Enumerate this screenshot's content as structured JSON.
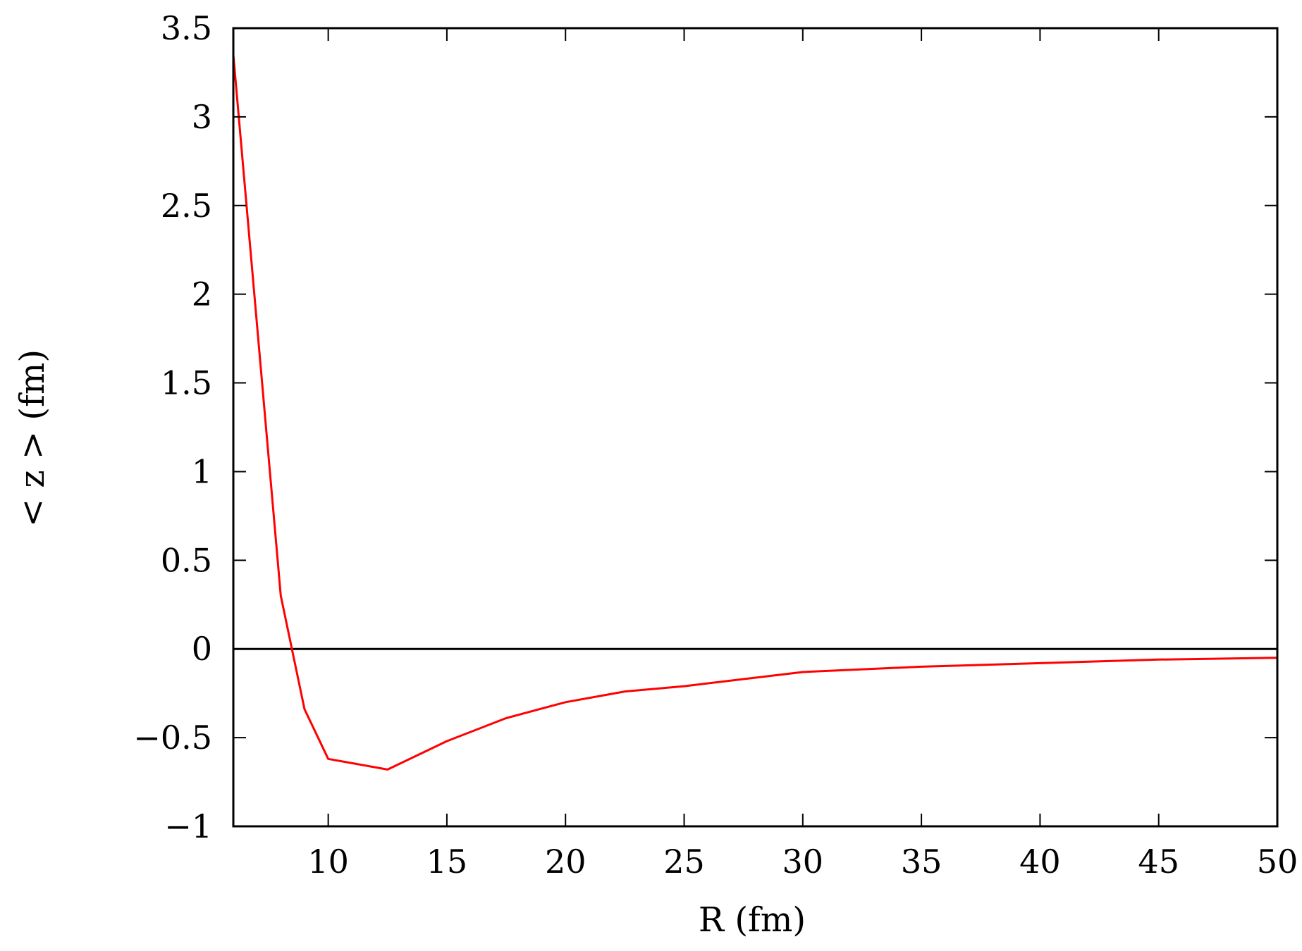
{
  "chart_data": {
    "type": "line",
    "xlabel": "R (fm)",
    "ylabel": "< z > (fm)",
    "xlim": [
      6,
      50
    ],
    "ylim": [
      -1,
      3.5
    ],
    "x_ticks": [
      10,
      15,
      20,
      25,
      30,
      35,
      40,
      45,
      50
    ],
    "x_tick_labels": [
      "10",
      "15",
      "20",
      "25",
      "30",
      "35",
      "40",
      "45",
      "50"
    ],
    "y_ticks": [
      -1,
      -0.5,
      0,
      0.5,
      1,
      1.5,
      2,
      2.5,
      3,
      3.5
    ],
    "y_tick_labels": [
      "−1",
      "−0.5",
      "0",
      "0.5",
      "1",
      "1.5",
      "2",
      "2.5",
      "3",
      "3.5"
    ],
    "reference_line": {
      "y": 0,
      "color": "#000000"
    },
    "series": [
      {
        "color": "#ff0000",
        "x": [
          6,
          8,
          9,
          10,
          12.5,
          15,
          17.5,
          20,
          22.5,
          25,
          30,
          35,
          40,
          45,
          50
        ],
        "y": [
          3.35,
          0.3,
          -0.34,
          -0.62,
          -0.68,
          -0.52,
          -0.39,
          -0.3,
          -0.24,
          -0.21,
          -0.13,
          -0.1,
          -0.08,
          -0.06,
          -0.05
        ]
      }
    ],
    "grid": false,
    "legend": "none"
  }
}
